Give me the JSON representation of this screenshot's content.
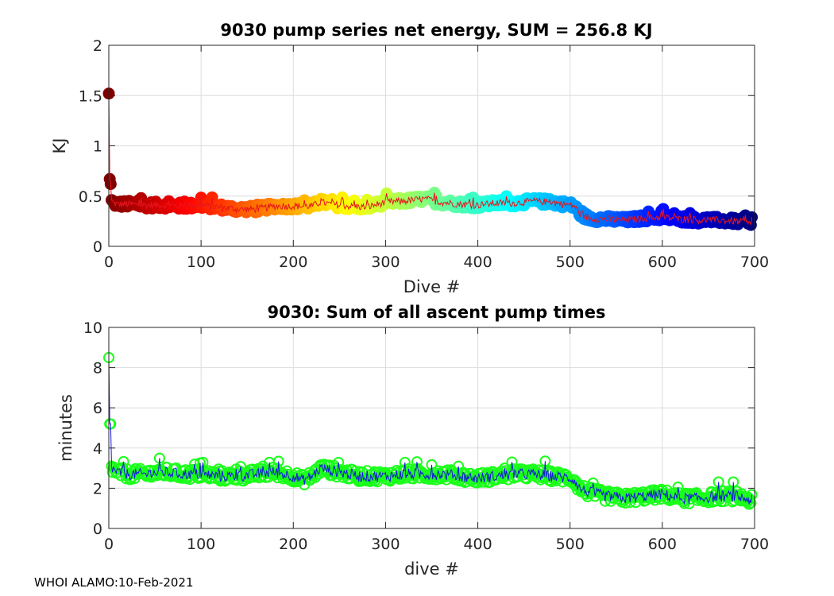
{
  "footer": "WHOI ALAMO:10-Feb-2021",
  "chart_data": [
    {
      "type": "line",
      "title": "9030 pump series net energy, SUM = 256.8 KJ",
      "xlabel": "Dive #",
      "ylabel": "KJ",
      "xlim": [
        0,
        700
      ],
      "ylim": [
        0,
        2
      ],
      "xticks": [
        "0",
        "100",
        "200",
        "300",
        "400",
        "500",
        "600",
        "700"
      ],
      "yticks": [
        "0",
        "0.5",
        "1",
        "1.5",
        "2"
      ],
      "grid": true,
      "marker_colormap": "jet, colored by dive number (dark red at start through red, orange, yellow, green, cyan, blue to dark navy at end)",
      "line_color": "#e8141d",
      "series": [
        {
          "name": "net energy",
          "x": [
            0,
            1,
            2,
            3,
            5,
            10,
            20,
            40,
            60,
            80,
            100,
            120,
            140,
            160,
            180,
            200,
            220,
            230,
            240,
            260,
            280,
            300,
            320,
            340,
            360,
            380,
            400,
            420,
            440,
            460,
            480,
            500,
            505,
            510,
            520,
            540,
            560,
            580,
            600,
            620,
            640,
            660,
            680,
            697
          ],
          "values": [
            1.52,
            0.67,
            0.62,
            0.46,
            0.43,
            0.42,
            0.42,
            0.41,
            0.41,
            0.4,
            0.41,
            0.39,
            0.37,
            0.37,
            0.4,
            0.4,
            0.4,
            0.44,
            0.42,
            0.4,
            0.39,
            0.44,
            0.45,
            0.47,
            0.44,
            0.42,
            0.41,
            0.43,
            0.43,
            0.45,
            0.44,
            0.41,
            0.4,
            0.33,
            0.28,
            0.27,
            0.26,
            0.28,
            0.29,
            0.27,
            0.26,
            0.26,
            0.25,
            0.22
          ]
        }
      ]
    },
    {
      "type": "line",
      "title": "9030: Sum of all ascent pump times",
      "xlabel": "dive #",
      "ylabel": "minutes",
      "xlim": [
        0,
        700
      ],
      "ylim": [
        0,
        10
      ],
      "xticks": [
        "0",
        "100",
        "200",
        "300",
        "400",
        "500",
        "600",
        "700"
      ],
      "yticks": [
        "0",
        "2",
        "4",
        "6",
        "8",
        "10"
      ],
      "grid": true,
      "marker_color": "#1aff1a",
      "line_color": "#1515e0",
      "series": [
        {
          "name": "ascent pump time",
          "x": [
            0,
            1,
            2,
            3,
            5,
            10,
            20,
            40,
            60,
            80,
            100,
            120,
            140,
            160,
            180,
            200,
            210,
            220,
            230,
            250,
            270,
            300,
            320,
            340,
            360,
            380,
            400,
            420,
            440,
            460,
            480,
            500,
            505,
            510,
            520,
            540,
            560,
            580,
            600,
            620,
            640,
            660,
            680,
            697
          ],
          "values": [
            8.5,
            5.2,
            5.2,
            3.1,
            2.9,
            2.8,
            2.7,
            2.7,
            2.8,
            2.7,
            2.7,
            2.6,
            2.6,
            2.7,
            2.8,
            2.6,
            2.4,
            2.6,
            3.0,
            2.8,
            2.6,
            2.6,
            2.7,
            2.7,
            2.7,
            2.6,
            2.5,
            2.6,
            2.7,
            2.7,
            2.6,
            2.5,
            2.4,
            2.0,
            1.8,
            1.6,
            1.5,
            1.6,
            1.7,
            1.5,
            1.5,
            1.6,
            1.6,
            1.4
          ]
        }
      ]
    }
  ]
}
